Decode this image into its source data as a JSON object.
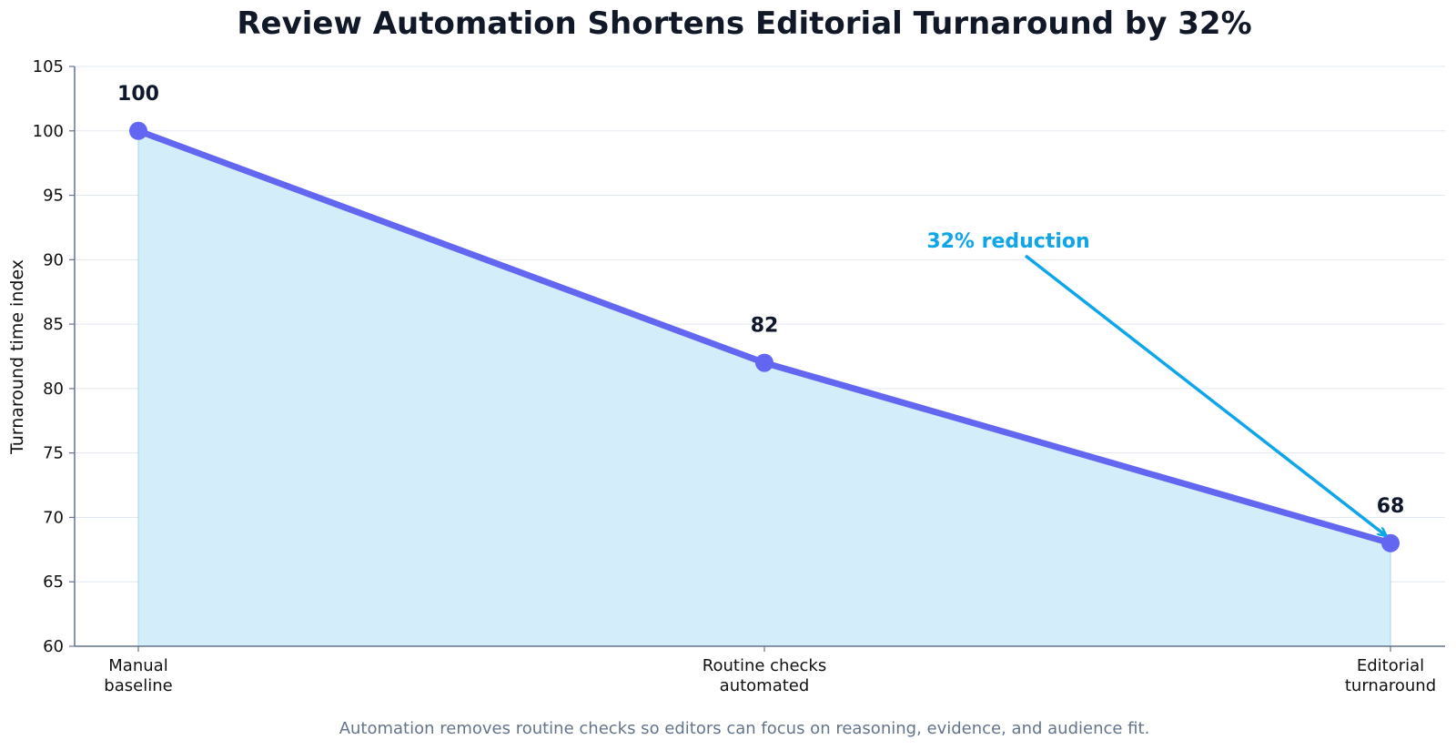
{
  "chart_data": {
    "type": "line",
    "title": "Review Automation Shortens Editorial Turnaround by 32%",
    "xlabel": "",
    "ylabel": "Turnaround time index",
    "categories": [
      [
        "Manual",
        "baseline"
      ],
      [
        "Routine checks",
        "automated"
      ],
      [
        "Editorial",
        "turnaround"
      ]
    ],
    "values": [
      100,
      82,
      68
    ],
    "data_labels": [
      "100",
      "82",
      "68"
    ],
    "ylim": [
      60,
      105
    ],
    "yticks": [
      60,
      65,
      70,
      75,
      80,
      85,
      90,
      95,
      100,
      105
    ],
    "grid": "horizontal",
    "fill_under_line": true,
    "annotation": {
      "text": "32% reduction",
      "points_to_category_index": 2
    },
    "footnote": "Automation removes routine checks so editors can focus on reasoning, evidence, and audience fit.",
    "colors": {
      "line": "#6366f1",
      "marker": "#6366f1",
      "area": "#d3edfb",
      "area_edge": "#a5d8f5",
      "annotation": "#0ea5e9",
      "grid": "#e2e8f0",
      "axis": "#64748b",
      "title": "#111827",
      "footnote": "#64748b"
    }
  }
}
